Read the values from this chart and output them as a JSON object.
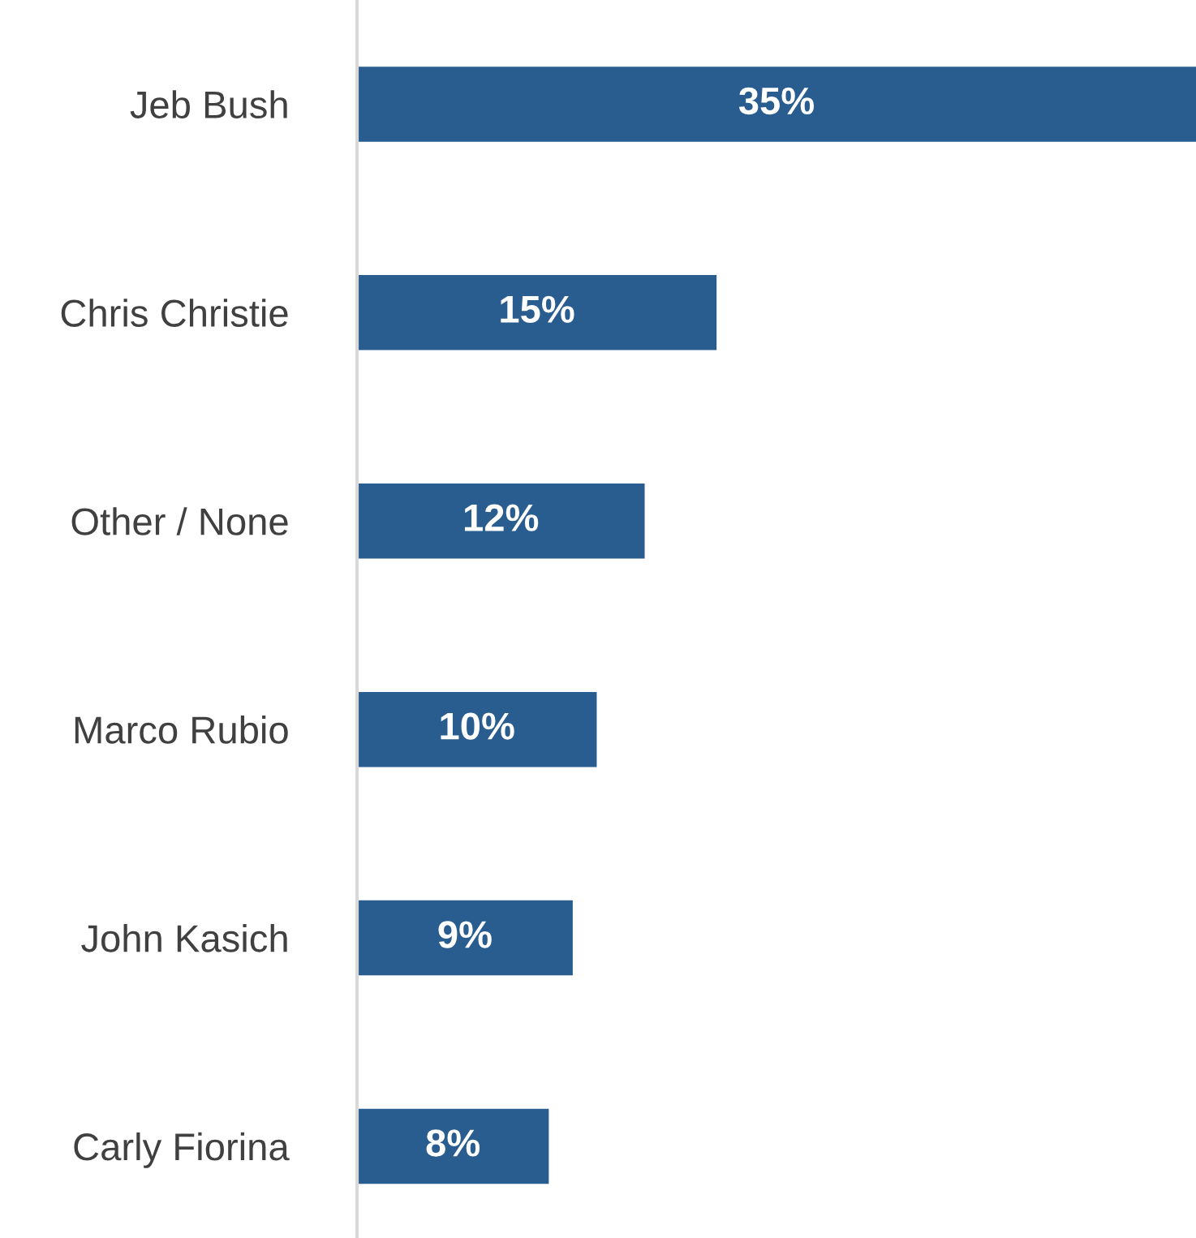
{
  "chart_data": {
    "type": "bar",
    "orientation": "horizontal",
    "categories": [
      "Jeb Bush",
      "Chris Christie",
      "Other / None",
      "Marco Rubio",
      "John Kasich",
      "Carly Fiorina"
    ],
    "values": [
      35,
      15,
      12,
      10,
      9,
      8
    ],
    "value_labels": [
      "35%",
      "15%",
      "12%",
      "10%",
      "9%",
      "8%"
    ],
    "color": "#2a5d8f",
    "grid": false,
    "legend": false,
    "tick_labels": "y"
  }
}
